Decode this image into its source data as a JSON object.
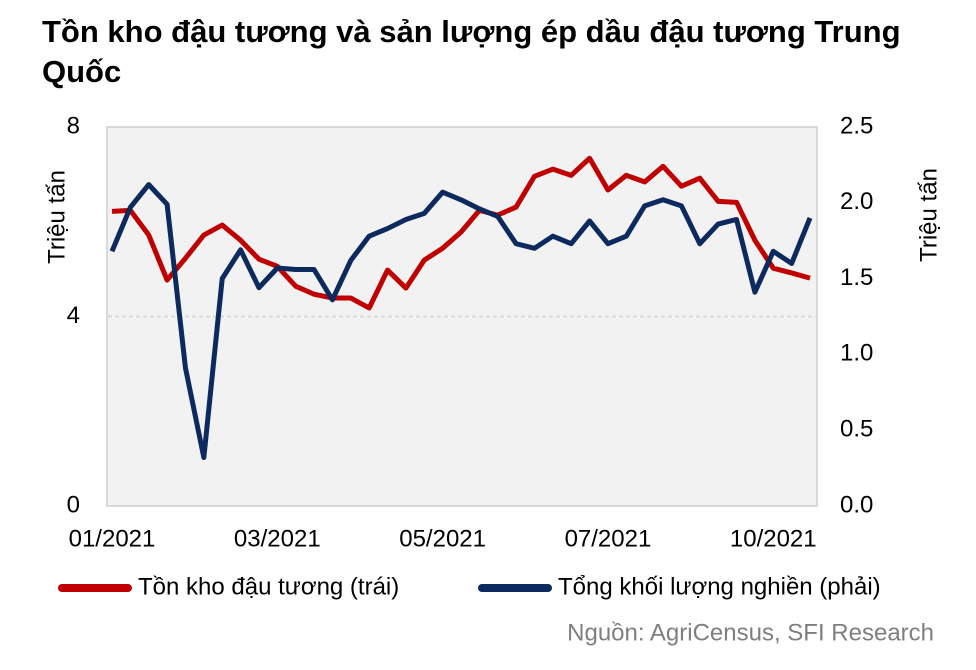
{
  "chart_data": {
    "type": "line",
    "title": "Tồn kho đậu tương và sản lượng ép dầu đậu tương Trung Quốc",
    "y_label": "Triệu tấn",
    "y2_label": "Triệu tấn",
    "source": "Nguồn: AgriCensus, SFI Research",
    "categories": [
      "01/2021",
      null,
      null,
      null,
      null,
      null,
      null,
      null,
      null,
      "03/2021",
      null,
      null,
      null,
      null,
      null,
      null,
      null,
      null,
      "05/2021",
      null,
      null,
      null,
      null,
      null,
      null,
      null,
      null,
      "07/2021",
      null,
      null,
      null,
      null,
      null,
      null,
      null,
      null,
      "10/2021",
      null,
      null
    ],
    "ylim": [
      0,
      8
    ],
    "yticks": [
      0,
      4,
      8
    ],
    "y2lim": [
      0,
      2.5
    ],
    "y2ticks": [
      {
        "value": 0,
        "label": "0.0"
      },
      {
        "value": 0.5,
        "label": "0.5"
      },
      {
        "value": 1,
        "label": "1.0"
      },
      {
        "value": 1.5,
        "label": "1.5"
      },
      {
        "value": 2,
        "label": "2.0"
      },
      2.5
    ],
    "grid": true,
    "legend": "bottom",
    "series": [
      {
        "name": "Tồn kho đậu tương (trái)",
        "color": "#c00000",
        "values": [
          6.22,
          6.24,
          5.72,
          4.77,
          5.23,
          5.72,
          5.93,
          5.61,
          5.21,
          5.06,
          4.64,
          4.47,
          4.39,
          4.39,
          4.18,
          4.98,
          4.6,
          5.19,
          5.44,
          5.78,
          6.24,
          6.14,
          6.31,
          6.96,
          7.11,
          6.98,
          7.34,
          6.67,
          6.98,
          6.84,
          7.17,
          6.75,
          6.92,
          6.43,
          6.41,
          5.61,
          5.02,
          4.92,
          4.81
        ]
      },
      {
        "name": "Tổng khối lượng nghiền (phải)",
        "color": "#0d2a5e",
        "axis": "y2",
        "values": [
          1.68,
          1.97,
          2.12,
          1.99,
          0.91,
          0.32,
          1.5,
          1.69,
          1.44,
          1.57,
          1.56,
          1.56,
          1.36,
          1.62,
          1.78,
          1.83,
          1.89,
          1.93,
          2.07,
          2.02,
          1.96,
          1.91,
          1.73,
          1.7,
          1.78,
          1.73,
          1.88,
          1.73,
          1.78,
          1.98,
          2.02,
          1.98,
          1.73,
          1.86,
          1.89,
          1.41,
          1.68,
          1.6,
          1.9
        ]
      }
    ]
  }
}
